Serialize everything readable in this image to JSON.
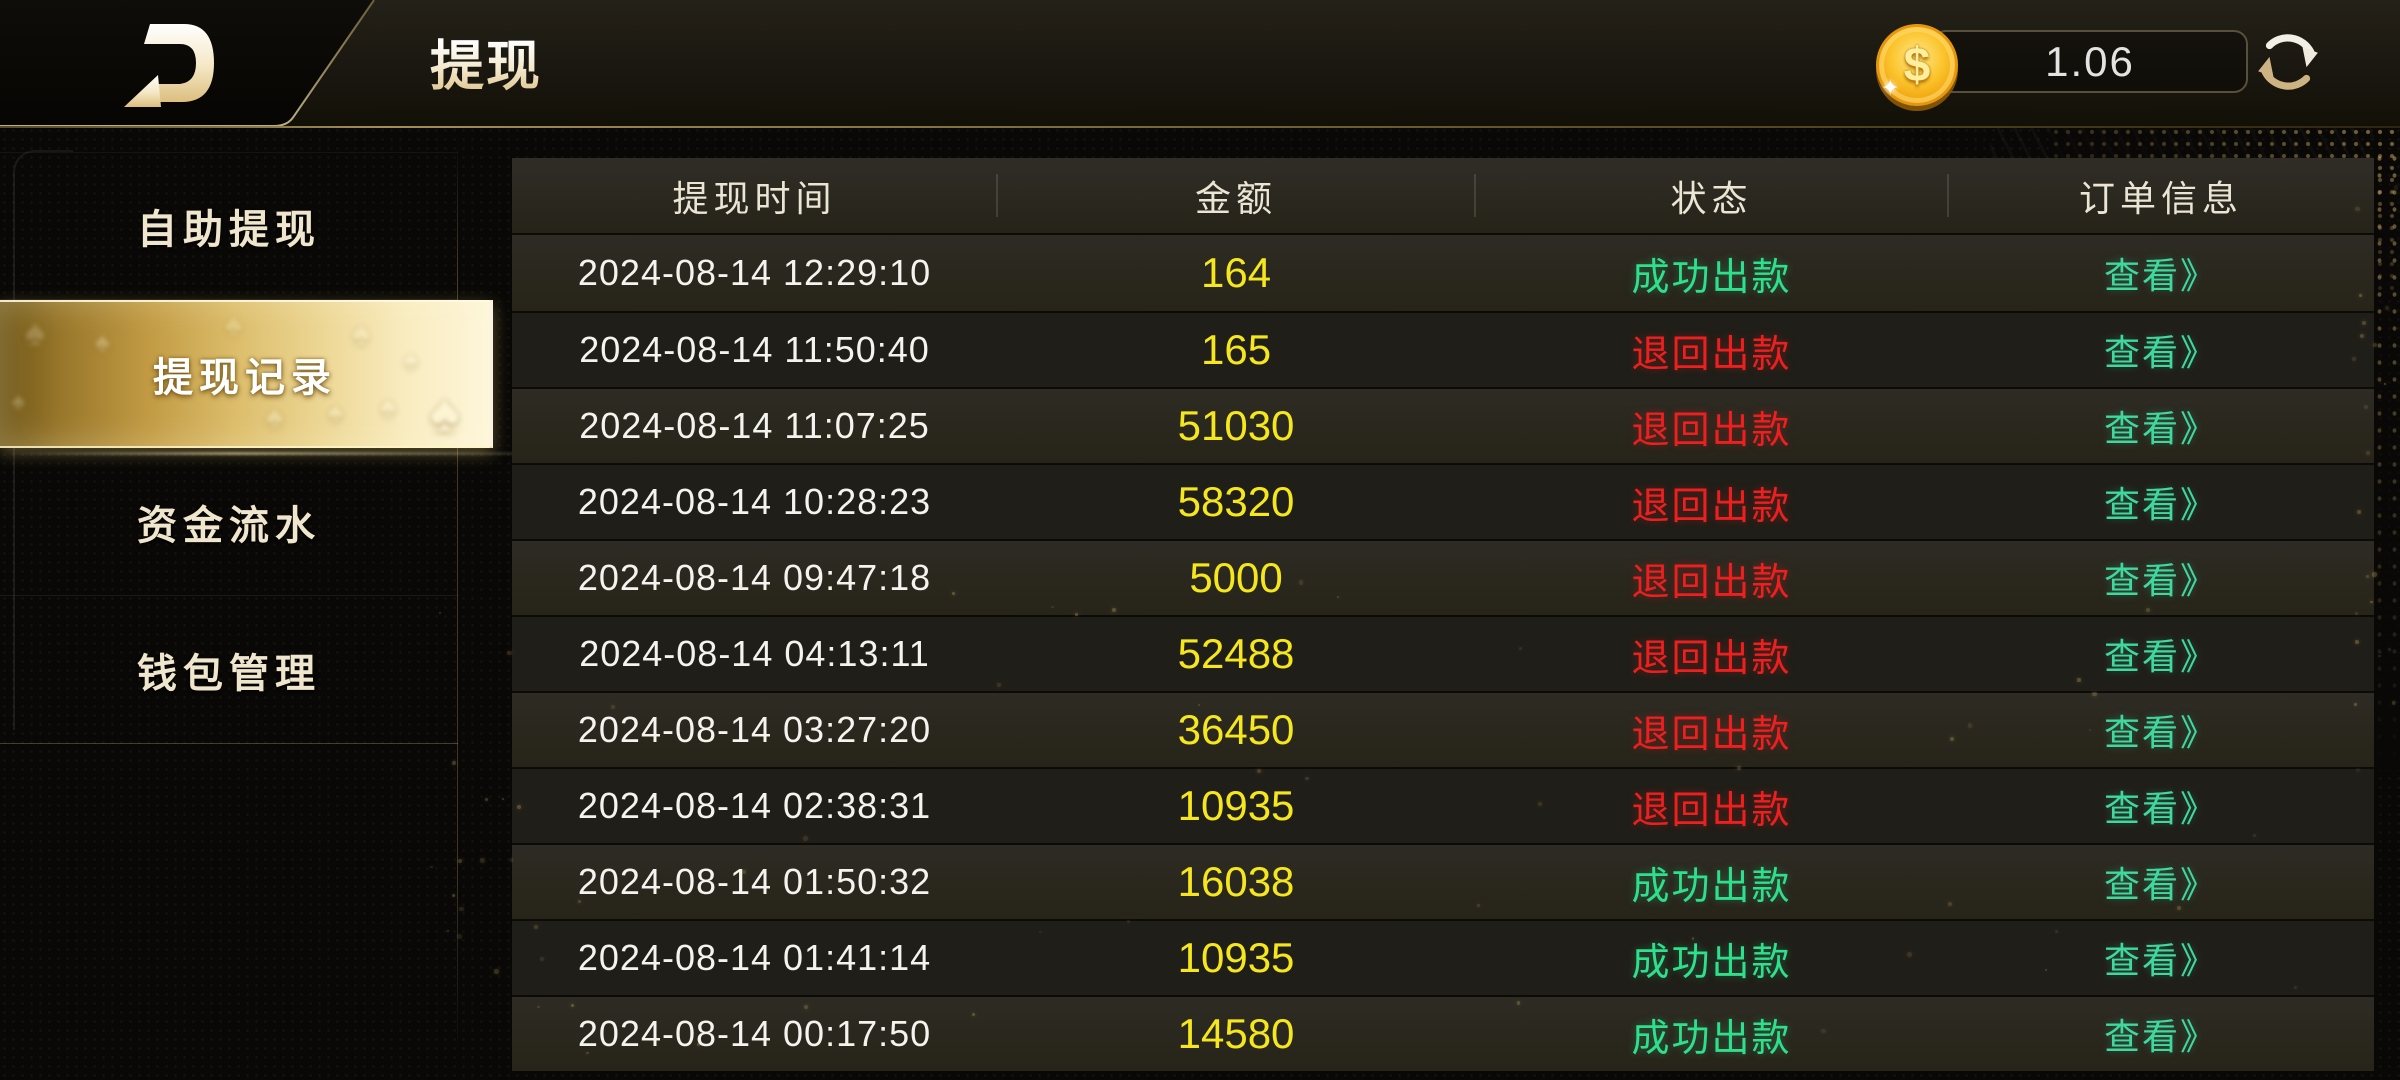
{
  "topbar": {
    "title": "提现",
    "balance": "1.06",
    "coin_symbol": "$"
  },
  "sidebar": {
    "items": [
      {
        "key": "self-withdraw",
        "label": "自助提现",
        "selected": false
      },
      {
        "key": "withdraw-records",
        "label": "提现记录",
        "selected": true
      },
      {
        "key": "funds-flow",
        "label": "资金流水",
        "selected": false
      },
      {
        "key": "wallet-manage",
        "label": "钱包管理",
        "selected": false
      }
    ]
  },
  "table": {
    "columns": [
      {
        "key": "time",
        "label": "提现时间"
      },
      {
        "key": "amount",
        "label": "金额"
      },
      {
        "key": "status",
        "label": "状态"
      },
      {
        "key": "info",
        "label": "订单信息"
      }
    ],
    "view_label": "查看》",
    "rows": [
      {
        "time": "2024-08-14 12:29:10",
        "amount": "164",
        "status": "成功出款",
        "status_type": "success"
      },
      {
        "time": "2024-08-14 11:50:40",
        "amount": "165",
        "status": "退回出款",
        "status_type": "returned"
      },
      {
        "time": "2024-08-14 11:07:25",
        "amount": "51030",
        "status": "退回出款",
        "status_type": "returned"
      },
      {
        "time": "2024-08-14 10:28:23",
        "amount": "58320",
        "status": "退回出款",
        "status_type": "returned"
      },
      {
        "time": "2024-08-14 09:47:18",
        "amount": "5000",
        "status": "退回出款",
        "status_type": "returned"
      },
      {
        "time": "2024-08-14 04:13:11",
        "amount": "52488",
        "status": "退回出款",
        "status_type": "returned"
      },
      {
        "time": "2024-08-14 03:27:20",
        "amount": "36450",
        "status": "退回出款",
        "status_type": "returned"
      },
      {
        "time": "2024-08-14 02:38:31",
        "amount": "10935",
        "status": "退回出款",
        "status_type": "returned"
      },
      {
        "time": "2024-08-14 01:50:32",
        "amount": "16038",
        "status": "成功出款",
        "status_type": "success"
      },
      {
        "time": "2024-08-14 01:41:14",
        "amount": "10935",
        "status": "成功出款",
        "status_type": "success"
      },
      {
        "time": "2024-08-14 00:17:50",
        "amount": "14580",
        "status": "成功出款",
        "status_type": "success"
      }
    ]
  },
  "colors": {
    "accent_gold": "#d9b85e",
    "amount_yellow": "#f5e71c",
    "success_green": "#2ee08c",
    "returned_red": "#ee1f1f",
    "view_green": "#3fd9a0"
  }
}
